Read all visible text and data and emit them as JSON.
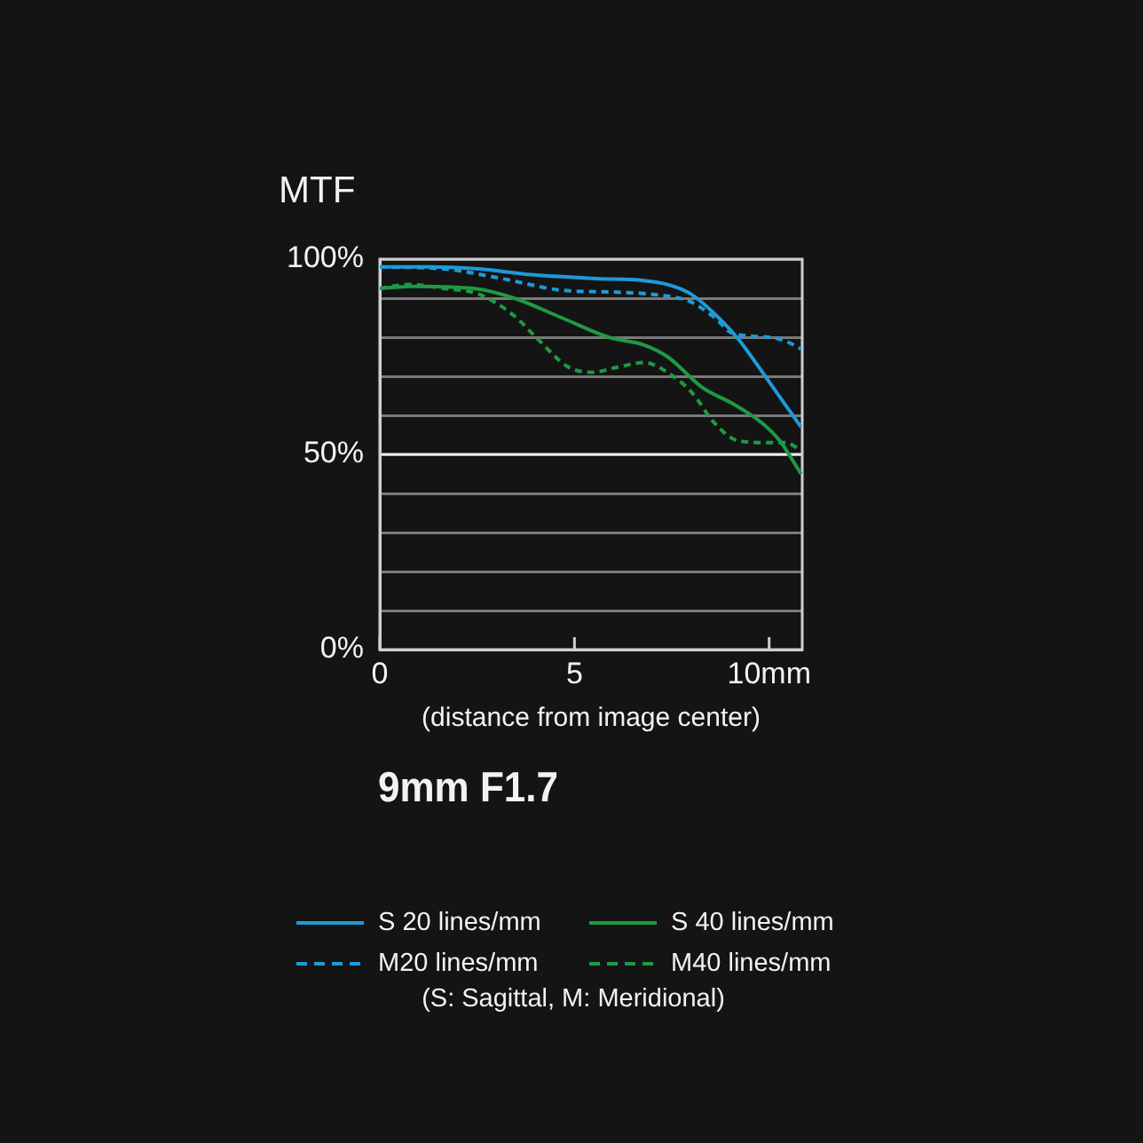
{
  "chart_data": {
    "type": "line",
    "title": "9mm F1.7",
    "xlabel": "(distance from image center)",
    "ylabel": "MTF",
    "annotations": [
      "(S: Sagittal, M: Meridional)"
    ],
    "xlim": [
      0,
      10.85
    ],
    "xticks": [
      0,
      5,
      {
        "value": 10,
        "label": "10mm"
      }
    ],
    "ylim": [
      0,
      100
    ],
    "yticks": [
      {
        "value": 0,
        "label": "0%"
      },
      {
        "value": 10,
        "label": null
      },
      {
        "value": 20,
        "label": null
      },
      {
        "value": 30,
        "label": null
      },
      {
        "value": 40,
        "label": null
      },
      {
        "value": 50,
        "label": "50%"
      },
      {
        "value": 60,
        "label": null
      },
      {
        "value": 70,
        "label": null
      },
      {
        "value": 80,
        "label": null
      },
      {
        "value": 90,
        "label": null
      },
      {
        "value": 100,
        "label": "100%"
      }
    ],
    "grid": "y",
    "legend": "bottom",
    "marker": "none",
    "ref_lines": [
      {
        "axis": "y",
        "value": 50,
        "color": "#ececec",
        "line_style": "solid"
      }
    ],
    "series": [
      {
        "name": "S 20 lines/mm",
        "color": "#1f9ad8",
        "line_style": "solid",
        "x": [
          0,
          1.33,
          2.55,
          3.91,
          5.58,
          6.79,
          7.39,
          8.0,
          8.6,
          9.21,
          9.97,
          10.82
        ],
        "values": [
          98,
          98,
          97.5,
          96,
          95,
          94.5,
          93.5,
          91,
          86,
          79.5,
          69,
          57
        ]
      },
      {
        "name": "M20 lines/mm",
        "color": "#1f9ad8",
        "line_style": "dashed",
        "x": [
          0,
          1.64,
          3.15,
          4.7,
          6.2,
          7.4,
          8.0,
          8.6,
          9.06,
          10.0,
          10.42,
          10.82
        ],
        "values": [
          98,
          97.5,
          95,
          92,
          91.5,
          90.5,
          89,
          85,
          81,
          80,
          79,
          77
        ]
      },
      {
        "name": "S 40 lines/mm",
        "color": "#1e9a44",
        "line_style": "solid",
        "x": [
          0,
          0.9,
          2.4,
          3.45,
          4.67,
          5.88,
          6.79,
          7.39,
          8.3,
          9.06,
          9.82,
          10.27,
          10.82
        ],
        "values": [
          92.5,
          93,
          92.5,
          90,
          85,
          80,
          78,
          75,
          67,
          63,
          58,
          53.5,
          45
        ]
      },
      {
        "name": "M40 lines/mm",
        "color": "#1e9a44",
        "line_style": "dashed",
        "x": [
          0,
          0.73,
          1.64,
          2.55,
          3.45,
          4.06,
          4.82,
          5.42,
          6.18,
          6.79,
          7.39,
          8.0,
          8.6,
          9.2,
          9.97,
          10.42,
          10.82
        ],
        "values": [
          92.5,
          93.5,
          92.5,
          91,
          85.5,
          79.5,
          72.5,
          71,
          72.5,
          73.5,
          71,
          66,
          58,
          53.5,
          53,
          53,
          51
        ]
      }
    ]
  }
}
